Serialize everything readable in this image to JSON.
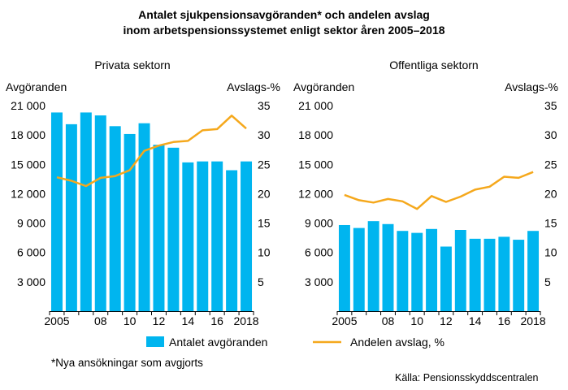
{
  "header": {
    "title_line1": "Antalet sjukpensionsavgöranden* och andelen avslag",
    "title_line2": "inom arbetspensionssystemet enligt sektor åren 2005–2018"
  },
  "footnote": "*Nya ansökningar som avgjorts",
  "source": "Källa: Pensionsskyddscentralen",
  "legend": {
    "bars": "Antalet avgöranden",
    "line": "Andelen avslag, %"
  },
  "colors": {
    "bar": "#00b5ef",
    "line": "#f5a81c",
    "axis": "#000000"
  },
  "chart_data": [
    {
      "type": "bar+line",
      "title": "Privata sektorn",
      "ylabel_left": "Avgöranden",
      "ylabel_right": "Avslags-%",
      "x": [
        2005,
        2006,
        2007,
        2008,
        2009,
        2010,
        2011,
        2012,
        2013,
        2014,
        2015,
        2016,
        2017,
        2018
      ],
      "x_tick_labels": [
        "2005",
        "",
        "",
        "08",
        "",
        "10",
        "",
        "12",
        "",
        "14",
        "",
        "16",
        "",
        "2018"
      ],
      "ylim_left": [
        0,
        21000
      ],
      "yticks_left": [
        "3 000",
        "6 000",
        "9 000",
        "12 000",
        "15 000",
        "18 000",
        "21 000"
      ],
      "ylim_right": [
        0,
        35
      ],
      "yticks_right": [
        "5",
        "10",
        "15",
        "20",
        "25",
        "30",
        "35"
      ],
      "series": [
        {
          "name": "Antalet avgöranden",
          "type": "bar",
          "values": [
            20300,
            19100,
            20300,
            20000,
            18900,
            18100,
            19200,
            17000,
            16700,
            15200,
            15300,
            15300,
            14400,
            15300
          ]
        },
        {
          "name": "Andelen avslag, %",
          "type": "line",
          "values": [
            22.8,
            22.2,
            21.3,
            22.7,
            23.0,
            24.0,
            27.3,
            28.2,
            28.8,
            29.0,
            30.8,
            31.0,
            33.3,
            31.1
          ]
        }
      ]
    },
    {
      "type": "bar+line",
      "title": "Offentliga sektorn",
      "ylabel_left": "Avgöranden",
      "ylabel_right": "Avslags-%",
      "x": [
        2005,
        2006,
        2007,
        2008,
        2009,
        2010,
        2011,
        2012,
        2013,
        2014,
        2015,
        2016,
        2017,
        2018
      ],
      "x_tick_labels": [
        "2005",
        "",
        "",
        "08",
        "",
        "10",
        "",
        "12",
        "",
        "14",
        "",
        "16",
        "",
        "2018"
      ],
      "ylim_left": [
        0,
        21000
      ],
      "yticks_left": [
        "3 000",
        "6 000",
        "9 000",
        "12 000",
        "15 000",
        "18 000",
        "21 000"
      ],
      "ylim_right": [
        0,
        35
      ],
      "yticks_right": [
        "5",
        "10",
        "15",
        "20",
        "25",
        "30",
        "35"
      ],
      "series": [
        {
          "name": "Antalet avgöranden",
          "type": "bar",
          "values": [
            8800,
            8500,
            9200,
            8900,
            8200,
            8000,
            8400,
            6600,
            8300,
            7400,
            7400,
            7600,
            7300,
            8200
          ]
        },
        {
          "name": "Andelen avslag, %",
          "type": "line",
          "values": [
            19.8,
            18.9,
            18.5,
            19.1,
            18.7,
            17.4,
            19.6,
            18.6,
            19.5,
            20.7,
            21.2,
            22.9,
            22.7,
            23.7
          ]
        }
      ]
    }
  ]
}
